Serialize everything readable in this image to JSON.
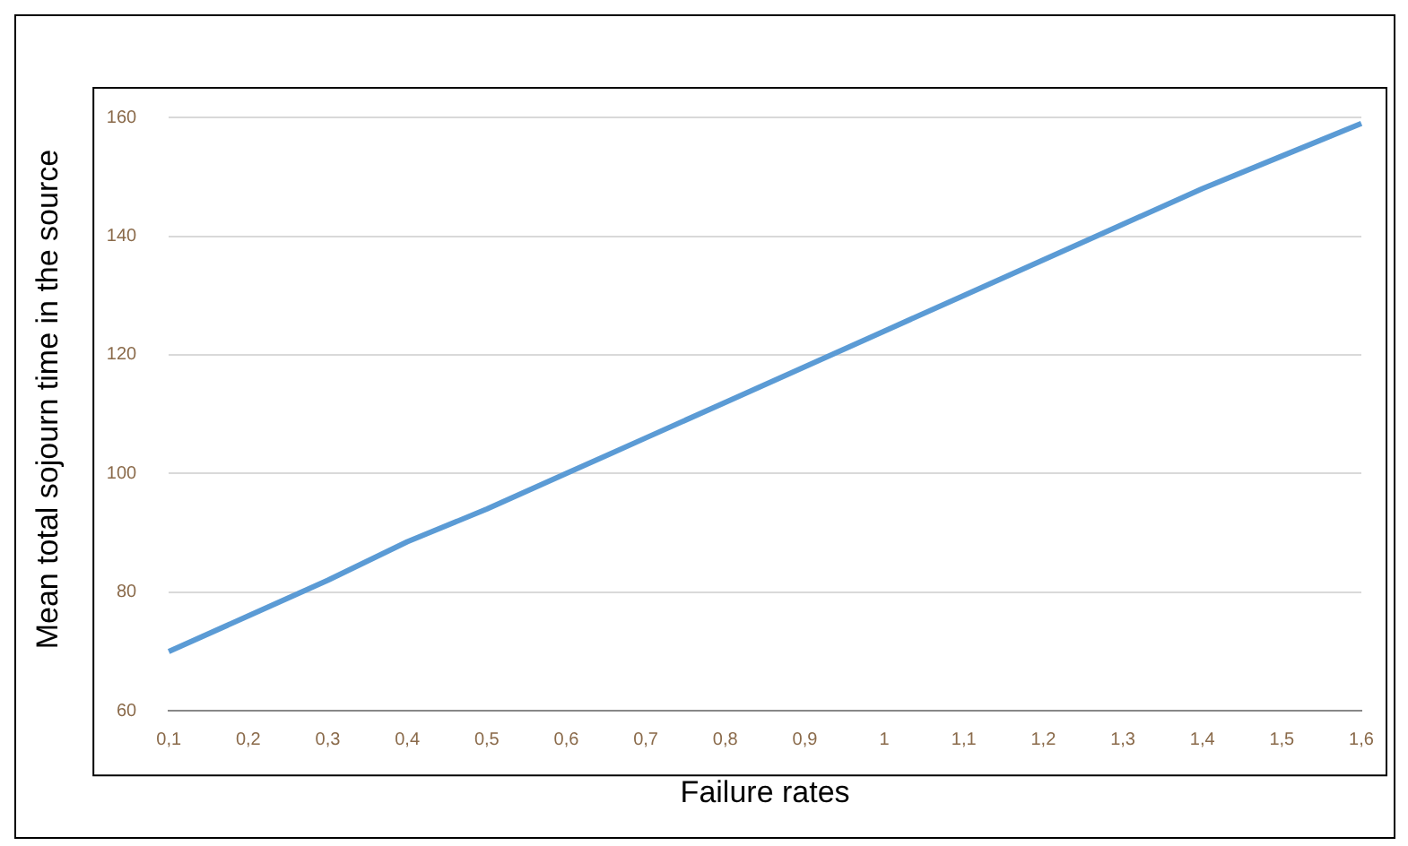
{
  "chart_data": {
    "type": "line",
    "xlabel": "Failure rates",
    "ylabel": "Mean total sojourn time in the source",
    "categories": [
      "0,1",
      "0,2",
      "0,3",
      "0,4",
      "0,5",
      "0,6",
      "0,7",
      "0,8",
      "0,9",
      "1",
      "1,1",
      "1,2",
      "1,3",
      "1,4",
      "1,5",
      "1,6"
    ],
    "series": [
      {
        "color": "#5b9bd5",
        "values": [
          70,
          76,
          82,
          88.5,
          94,
          100,
          106,
          112,
          118,
          124,
          130,
          136,
          142,
          148,
          153.5,
          159
        ]
      }
    ],
    "ylim": [
      60,
      165
    ],
    "yticks": [
      60,
      80,
      100,
      120,
      140,
      160
    ],
    "grid": "y",
    "legend": false,
    "marker": "none",
    "line_style": "solid"
  }
}
